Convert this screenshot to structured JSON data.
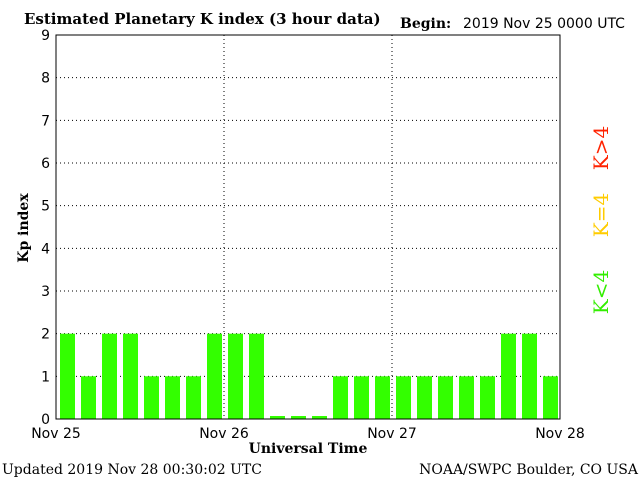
{
  "header": {
    "title": "Estimated Planetary K index (3 hour data)",
    "begin_label": "Begin:",
    "begin_value": "2019 Nov 25 0000 UTC"
  },
  "footer": {
    "updated": "Updated 2019 Nov 28 00:30:02 UTC",
    "credit": "NOAA/SWPC Boulder, CO USA"
  },
  "legend": {
    "above": {
      "text": "K>4",
      "color": "#ff2200"
    },
    "equal": {
      "text": "K=4",
      "color": "#ffcc00"
    },
    "below": {
      "text": "K<4",
      "color": "#33ee00"
    }
  },
  "chart_data": {
    "type": "bar",
    "ylabel": "Kp index",
    "xlabel": "Universal Time",
    "ylim": [
      0,
      9
    ],
    "yticks": [
      "0",
      "1",
      "2",
      "3",
      "4",
      "5",
      "6",
      "7",
      "8",
      "9"
    ],
    "xticks": [
      "Nov 25",
      "Nov 26",
      "Nov 27",
      "Nov 28"
    ],
    "grid": true,
    "bar_color": "#33ff00",
    "values": [
      2,
      1,
      2,
      2,
      1,
      1,
      1,
      2,
      2,
      2,
      0,
      0,
      0,
      1,
      1,
      1,
      1,
      1,
      1,
      1,
      1,
      2,
      2,
      1
    ]
  }
}
